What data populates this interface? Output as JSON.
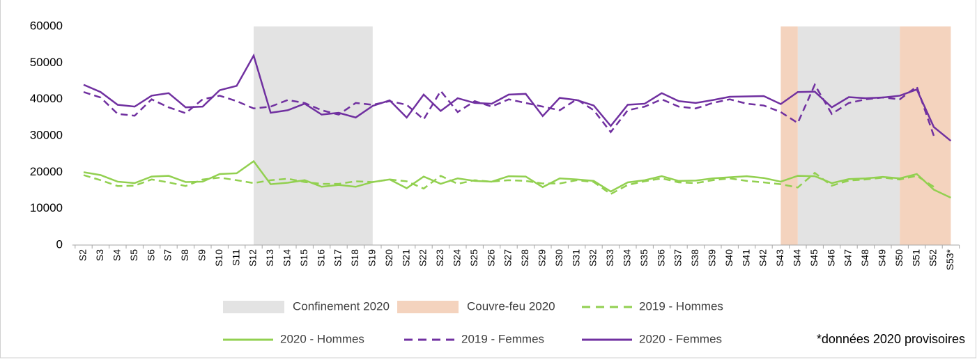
{
  "chart_data": {
    "type": "line",
    "categories": [
      "S2",
      "S3",
      "S4",
      "S5",
      "S6",
      "S7",
      "S8",
      "S9",
      "S10",
      "S11",
      "S12",
      "S13",
      "S14",
      "S15",
      "S16",
      "S17",
      "S18",
      "S19",
      "S20",
      "S21",
      "S22",
      "S23",
      "S24",
      "S25",
      "S26",
      "S27",
      "S28",
      "S29",
      "S30",
      "S31",
      "S32",
      "S33",
      "S34",
      "S35",
      "S36",
      "S37",
      "S38",
      "S39",
      "S40",
      "S41",
      "S42",
      "S43",
      "S44",
      "S45",
      "S46",
      "S47",
      "S48",
      "S49",
      "S50",
      "S51",
      "S52",
      "S53*"
    ],
    "bands": [
      {
        "name": "Confinement 2020",
        "color": "#e3e3e3",
        "ranges": [
          [
            "S12",
            "S19"
          ],
          [
            "S44",
            "S50"
          ]
        ]
      },
      {
        "name": "Couvre-feu 2020",
        "color": "#f4d3be",
        "ranges": [
          [
            "S43",
            "S44"
          ],
          [
            "S50",
            "S53*"
          ]
        ]
      }
    ],
    "series": [
      {
        "name": "2019 - Hommes",
        "color": "#92d050",
        "dashed": true,
        "values": [
          19200,
          17800,
          16200,
          16300,
          18000,
          17200,
          16200,
          18000,
          18500,
          17800,
          17000,
          17800,
          18200,
          17300,
          16800,
          16800,
          17500,
          17300,
          18000,
          17500,
          15500,
          19000,
          16800,
          17800,
          17400,
          17800,
          17600,
          16900,
          16900,
          17800,
          17300,
          14000,
          16500,
          17500,
          18300,
          17200,
          17000,
          17800,
          18300,
          17600,
          17200,
          16700,
          15800,
          19800,
          16300,
          17700,
          18000,
          18500,
          18000,
          19000,
          16000,
          null
        ]
      },
      {
        "name": "2020 - Hommes",
        "color": "#92d050",
        "dashed": false,
        "values": [
          20000,
          19200,
          17400,
          17000,
          18800,
          19000,
          17300,
          17400,
          19500,
          19700,
          23000,
          16700,
          17100,
          17800,
          16000,
          16500,
          16000,
          17300,
          18000,
          15600,
          18800,
          16800,
          18300,
          17600,
          17400,
          18900,
          18800,
          15900,
          18300,
          18000,
          17600,
          14700,
          17200,
          17800,
          18900,
          17600,
          17700,
          18300,
          18600,
          18900,
          18400,
          17400,
          19000,
          18900,
          17000,
          18100,
          18300,
          18700,
          18300,
          19500,
          15200,
          13000
        ]
      },
      {
        "name": "2019 - Femmes",
        "color": "#7030a0",
        "dashed": true,
        "values": [
          42000,
          40500,
          36000,
          35500,
          40000,
          37800,
          36200,
          40000,
          41000,
          39500,
          37500,
          38000,
          39800,
          39000,
          37000,
          35800,
          39000,
          38500,
          39500,
          38500,
          34500,
          42300,
          36500,
          39500,
          38000,
          40000,
          39000,
          38000,
          37000,
          40000,
          37000,
          31000,
          37000,
          38000,
          40000,
          38000,
          37500,
          39000,
          40000,
          38800,
          38300,
          36500,
          33500,
          44000,
          36000,
          39000,
          40000,
          40500,
          40000,
          43500,
          30000,
          null
        ]
      },
      {
        "name": "2020 - Femmes",
        "color": "#7030a0",
        "dashed": false,
        "values": [
          44000,
          42000,
          38500,
          38000,
          41000,
          41700,
          37800,
          38000,
          42500,
          43700,
          52000,
          36300,
          37000,
          38800,
          35800,
          36300,
          35000,
          38200,
          39700,
          35000,
          41300,
          36800,
          40300,
          39000,
          38800,
          41300,
          41500,
          35400,
          40400,
          39800,
          38300,
          32700,
          38500,
          38800,
          41700,
          39500,
          39000,
          39800,
          40700,
          40800,
          40900,
          38700,
          42000,
          42100,
          37800,
          40600,
          40300,
          40500,
          41000,
          42700,
          32400,
          28600
        ]
      }
    ],
    "ylim": [
      0,
      60000
    ],
    "yticks": [
      0,
      10000,
      20000,
      30000,
      40000,
      50000,
      60000
    ],
    "note": "*données 2020 provisoires"
  }
}
